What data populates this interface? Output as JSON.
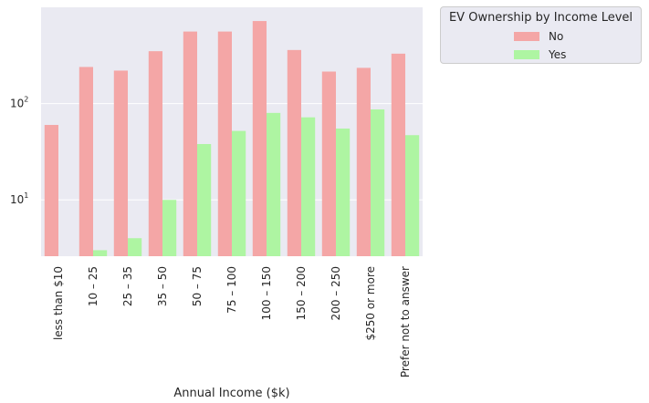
{
  "chart_data": {
    "type": "bar",
    "title": "",
    "xlabel": "Annual Income ($k)",
    "ylabel": "",
    "yscale": "log",
    "ylim": [
      2.6,
      1000
    ],
    "yticks": [
      {
        "value": 10,
        "base": "10",
        "exp": "1"
      },
      {
        "value": 100,
        "base": "10",
        "exp": "2"
      }
    ],
    "categories": [
      "less than $10",
      "10 – 25",
      "25 – 35",
      "35 – 50",
      "50 – 75",
      "75 – 100",
      "100 – 150",
      "150 – 200",
      "200 – 250",
      "$250 or more",
      "Prefer not to answer"
    ],
    "legend_title": "EV Ownership by Income Level",
    "legend_position": "outside-top-right",
    "grid": true,
    "series": [
      {
        "name": "No",
        "color": "#f4a6a6",
        "values": [
          60,
          240,
          220,
          350,
          560,
          560,
          720,
          360,
          215,
          235,
          330
        ]
      },
      {
        "name": "Yes",
        "color": "#aef5a2",
        "values": [
          null,
          3,
          4,
          10,
          38,
          52,
          80,
          72,
          55,
          87,
          47
        ]
      }
    ],
    "background_color": "#eaeaf2",
    "grid_color": "#ffffff"
  }
}
